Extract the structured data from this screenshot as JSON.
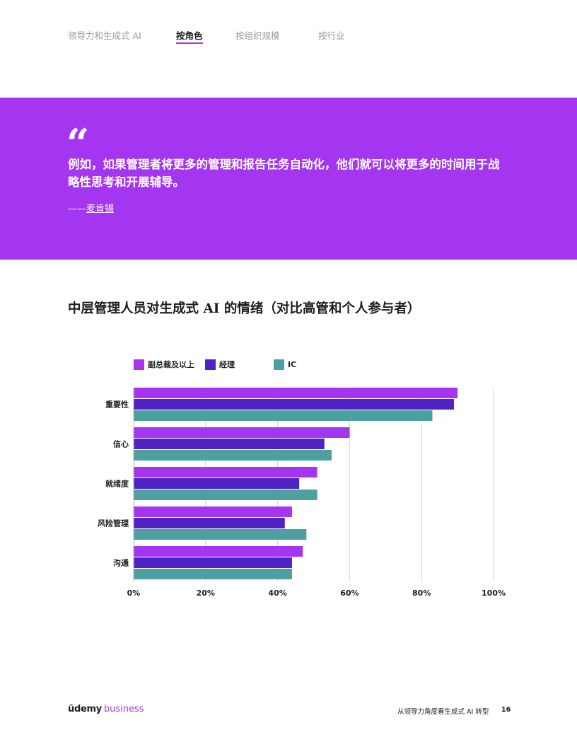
{
  "nav": {
    "tabs": [
      {
        "label": "领导力和生成式 AI",
        "active": false
      },
      {
        "label": "按角色",
        "active": true
      },
      {
        "label": "按组织规模",
        "active": false
      },
      {
        "label": "按行业",
        "active": false
      }
    ]
  },
  "quote": {
    "mark": "“",
    "text": "例如，如果管理者将更多的管理和报告任务自动化，他们就可以将更多的时间用于战略性思考和开展辅导。",
    "attribution_prefix": "——",
    "attribution_name": "麦肯锡"
  },
  "section": {
    "title": "中层管理人员对生成式 AI 的情绪（对比高管和个人参与者）"
  },
  "colors": {
    "brand_purple": "#a435f0",
    "series_vp": "#a435f0",
    "series_manager": "#5022c3",
    "series_ic": "#4ea0a0"
  },
  "chart_data": {
    "type": "bar",
    "orientation": "horizontal",
    "categories": [
      "重要性",
      "信心",
      "就绪度",
      "风险管理",
      "沟通"
    ],
    "series": [
      {
        "name": "副总裁及以上",
        "color": "#a435f0",
        "values": [
          90,
          60,
          51,
          44,
          47
        ]
      },
      {
        "name": "经理",
        "color": "#5022c3",
        "values": [
          89,
          53,
          46,
          42,
          44
        ]
      },
      {
        "name": "IC",
        "color": "#4ea0a0",
        "values": [
          83,
          55,
          51,
          48,
          44
        ]
      }
    ],
    "xlim": [
      0,
      100
    ],
    "xticks": [
      "0%",
      "20%",
      "40%",
      "60%",
      "80%",
      "100%"
    ],
    "grid": true,
    "legend_position": "top-left"
  },
  "footer": {
    "brand": "ūdemy",
    "brand_sub": "business",
    "doc_title": "从领导力角度看生成式 AI 转型",
    "page_number": "16"
  }
}
